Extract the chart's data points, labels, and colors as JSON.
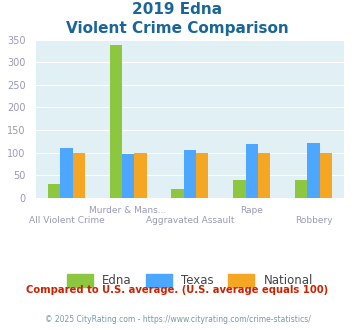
{
  "title_line1": "2019 Edna",
  "title_line2": "Violent Crime Comparison",
  "categories": [
    "All Violent Crime",
    "Murder & Mans...",
    "Aggravated Assault",
    "Rape",
    "Robbery"
  ],
  "top_labels": [
    [
      1,
      "Murder & Mans..."
    ],
    [
      3,
      "Rape"
    ]
  ],
  "bot_labels": [
    [
      0,
      "All Violent Crime"
    ],
    [
      2,
      "Aggravated Assault"
    ],
    [
      4,
      "Robbery"
    ]
  ],
  "series": {
    "Edna": [
      30,
      337,
      20,
      40,
      40
    ],
    "Texas": [
      110,
      97,
      105,
      119,
      121
    ],
    "National": [
      100,
      100,
      100,
      100,
      100
    ]
  },
  "colors": {
    "Edna": "#8dc63f",
    "Texas": "#4da6ff",
    "National": "#f5a623"
  },
  "ylim": [
    0,
    350
  ],
  "yticks": [
    0,
    50,
    100,
    150,
    200,
    250,
    300,
    350
  ],
  "background_color": "#e0f0f5",
  "title_color": "#1a6699",
  "axis_label_color": "#9999bb",
  "legend_label_color": "#444444",
  "footer_text": "Compared to U.S. average. (U.S. average equals 100)",
  "footer_color": "#cc2200",
  "copyright_text": "© 2025 CityRating.com - https://www.cityrating.com/crime-statistics/",
  "copyright_color": "#7799aa"
}
